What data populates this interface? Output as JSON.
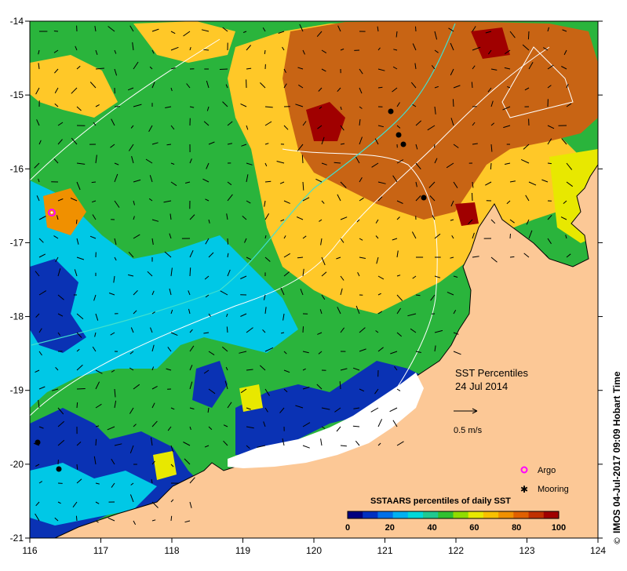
{
  "map": {
    "x_ticks": [
      "116",
      "117",
      "118",
      "119",
      "120",
      "121",
      "122",
      "123",
      "124"
    ],
    "y_ticks": [
      "-14",
      "-15",
      "-16",
      "-17",
      "-18",
      "-19",
      "-20",
      "-21"
    ],
    "title_line1": "SST Percentiles",
    "title_line2": "24 Jul 2014",
    "vector_scale_label": "0.5 m/s",
    "legend": {
      "argo_label": "Argo",
      "mooring_label": "Mooring"
    },
    "colorbar": {
      "title": "SSTAARS percentiles of daily SST",
      "ticks": [
        "0",
        "20",
        "40",
        "60",
        "80",
        "100"
      ],
      "colors": [
        "#00007f",
        "#0030c0",
        "#0070e8",
        "#00b0f0",
        "#00d8d8",
        "#20c890",
        "#30c030",
        "#90dc00",
        "#e8e800",
        "#f8c000",
        "#f09000",
        "#e06000",
        "#c03000",
        "#a00000"
      ]
    },
    "credit": "IMOS 04-Jul-2017 09:09 Hobart Time",
    "colors": {
      "land": "#fcc896",
      "warm": "#c86414",
      "mid": "#ffc828",
      "cool": "#00c8e6",
      "cold": "#0a32b4"
    }
  }
}
